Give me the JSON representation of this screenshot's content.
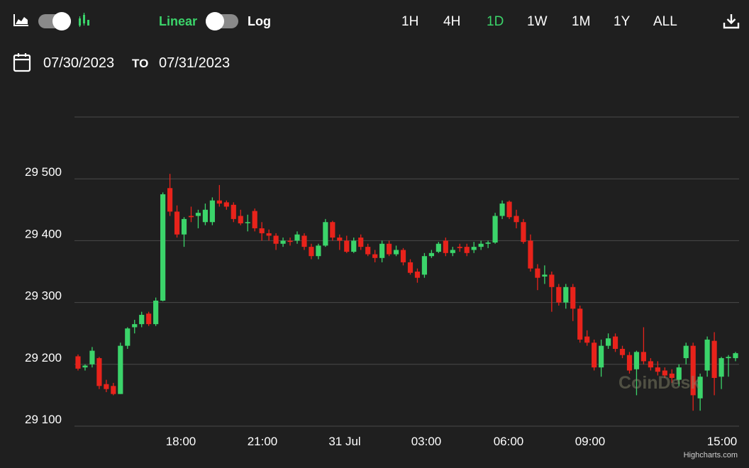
{
  "controls": {
    "chart_type_left_icon": "area-chart-icon",
    "chart_type_right_icon": "candlestick-chart-icon",
    "scale_linear_label": "Linear",
    "scale_log_label": "Log",
    "active_scale": "Linear",
    "ranges": [
      "1H",
      "4H",
      "1D",
      "1W",
      "1M",
      "1Y",
      "ALL"
    ],
    "active_range": "1D",
    "download_icon": "download-icon"
  },
  "date_range": {
    "calendar_icon": "calendar-icon",
    "from": "07/30/2023",
    "to_label": "TO",
    "to": "07/31/2023"
  },
  "colors": {
    "background": "#1f1f1f",
    "up": "#3bd46a",
    "down": "#e8231b",
    "accent": "#3bd46a",
    "grid": "#4a4a4a"
  },
  "chart_data": {
    "type": "candlestick",
    "ylim": [
      29100,
      29600
    ],
    "ytick_values": [
      29100,
      29200,
      29300,
      29400,
      29500
    ],
    "ytick_labels": [
      "29 100",
      "29 200",
      "29 300",
      "29 400",
      "29 500"
    ],
    "xlim_hours": [
      14.0,
      15.3
    ],
    "xtick_labels": [
      "18:00",
      "21:00",
      "31 Jul",
      "03:00",
      "06:00",
      "09:00",
      "15:00"
    ],
    "grid": true,
    "candles": [
      [
        29213,
        29216,
        29190,
        29193
      ],
      [
        29195,
        29200,
        29190,
        29198
      ],
      [
        29200,
        29228,
        29195,
        29222
      ],
      [
        29210,
        29212,
        29160,
        29165
      ],
      [
        29168,
        29175,
        29155,
        29160
      ],
      [
        29165,
        29170,
        29150,
        29152
      ],
      [
        29152,
        29235,
        29152,
        29230
      ],
      [
        29230,
        29260,
        29225,
        29258
      ],
      [
        29260,
        29272,
        29250,
        29265
      ],
      [
        29265,
        29285,
        29260,
        29280
      ],
      [
        29282,
        29285,
        29262,
        29265
      ],
      [
        29265,
        29308,
        29262,
        29303
      ],
      [
        29303,
        29478,
        29302,
        29475
      ],
      [
        29485,
        29508,
        29440,
        29447
      ],
      [
        29447,
        29457,
        29405,
        29410
      ],
      [
        29410,
        29438,
        29390,
        29435
      ],
      [
        29440,
        29455,
        29430,
        29438
      ],
      [
        29440,
        29450,
        29420,
        29445
      ],
      [
        29430,
        29460,
        29425,
        29450
      ],
      [
        29430,
        29470,
        29425,
        29465
      ],
      [
        29465,
        29490,
        29455,
        29460
      ],
      [
        29462,
        29465,
        29450,
        29455
      ],
      [
        29458,
        29462,
        29430,
        29435
      ],
      [
        29440,
        29450,
        29425,
        29428
      ],
      [
        29430,
        29442,
        29415,
        29430
      ],
      [
        29448,
        29452,
        29415,
        29420
      ],
      [
        29420,
        29430,
        29400,
        29412
      ],
      [
        29412,
        29418,
        29400,
        29408
      ],
      [
        29408,
        29412,
        29385,
        29395
      ],
      [
        29395,
        29405,
        29390,
        29400
      ],
      [
        29400,
        29405,
        29392,
        29398
      ],
      [
        29400,
        29415,
        29395,
        29410
      ],
      [
        29408,
        29412,
        29385,
        29390
      ],
      [
        29390,
        29395,
        29370,
        29375
      ],
      [
        29375,
        29395,
        29370,
        29392
      ],
      [
        29392,
        29435,
        29390,
        29430
      ],
      [
        29430,
        29432,
        29400,
        29405
      ],
      [
        29405,
        29410,
        29385,
        29400
      ],
      [
        29400,
        29408,
        29380,
        29382
      ],
      [
        29382,
        29405,
        29380,
        29400
      ],
      [
        29405,
        29410,
        29385,
        29390
      ],
      [
        29390,
        29395,
        29375,
        29378
      ],
      [
        29378,
        29385,
        29365,
        29372
      ],
      [
        29372,
        29400,
        29365,
        29395
      ],
      [
        29395,
        29400,
        29375,
        29378
      ],
      [
        29378,
        29392,
        29375,
        29385
      ],
      [
        29385,
        29388,
        29360,
        29365
      ],
      [
        29365,
        29370,
        29345,
        29348
      ],
      [
        29350,
        29355,
        29332,
        29340
      ],
      [
        29345,
        29380,
        29340,
        29375
      ],
      [
        29375,
        29385,
        29372,
        29380
      ],
      [
        29382,
        29398,
        29380,
        29395
      ],
      [
        29400,
        29405,
        29375,
        29380
      ],
      [
        29380,
        29390,
        29375,
        29385
      ],
      [
        29390,
        29395,
        29382,
        29388
      ],
      [
        29390,
        29395,
        29375,
        29380
      ],
      [
        29385,
        29398,
        29380,
        29390
      ],
      [
        29390,
        29400,
        29385,
        29395
      ],
      [
        29395,
        29400,
        29388,
        29397
      ],
      [
        29397,
        29445,
        29395,
        29440
      ],
      [
        29440,
        29465,
        29435,
        29460
      ],
      [
        29463,
        29465,
        29435,
        29438
      ],
      [
        29440,
        29450,
        29420,
        29430
      ],
      [
        29430,
        29435,
        29395,
        29398
      ],
      [
        29400,
        29410,
        29350,
        29355
      ],
      [
        29355,
        29362,
        29320,
        29340
      ],
      [
        29342,
        29360,
        29330,
        29345
      ],
      [
        29345,
        29350,
        29285,
        29325
      ],
      [
        29325,
        29330,
        29295,
        29300
      ],
      [
        29300,
        29330,
        29290,
        29325
      ],
      [
        29325,
        29330,
        29270,
        29290
      ],
      [
        29290,
        29295,
        29235,
        29240
      ],
      [
        29245,
        29255,
        29230,
        29235
      ],
      [
        29235,
        29240,
        29190,
        29195
      ],
      [
        29195,
        29240,
        29180,
        29230
      ],
      [
        29230,
        29250,
        29225,
        29242
      ],
      [
        29245,
        29250,
        29220,
        29225
      ],
      [
        29225,
        29230,
        29210,
        29215
      ],
      [
        29215,
        29220,
        29185,
        29190
      ],
      [
        29192,
        29222,
        29150,
        29220
      ],
      [
        29220,
        29260,
        29200,
        29205
      ],
      [
        29205,
        29210,
        29190,
        29195
      ],
      [
        29195,
        29205,
        29182,
        29188
      ],
      [
        29190,
        29195,
        29178,
        29182
      ],
      [
        29185,
        29192,
        29170,
        29178
      ],
      [
        29175,
        29200,
        29165,
        29195
      ],
      [
        29210,
        29235,
        29200,
        29230
      ],
      [
        29230,
        29235,
        29125,
        29150
      ],
      [
        29145,
        29185,
        29125,
        29180
      ],
      [
        29190,
        29245,
        29180,
        29240
      ],
      [
        29238,
        29252,
        29150,
        29178
      ],
      [
        29180,
        29212,
        29160,
        29210
      ],
      [
        29210,
        29215,
        29180,
        29212
      ],
      [
        29210,
        29220,
        29205,
        29218
      ]
    ]
  },
  "watermark": "CoinDesk",
  "credits": "Highcharts.com"
}
